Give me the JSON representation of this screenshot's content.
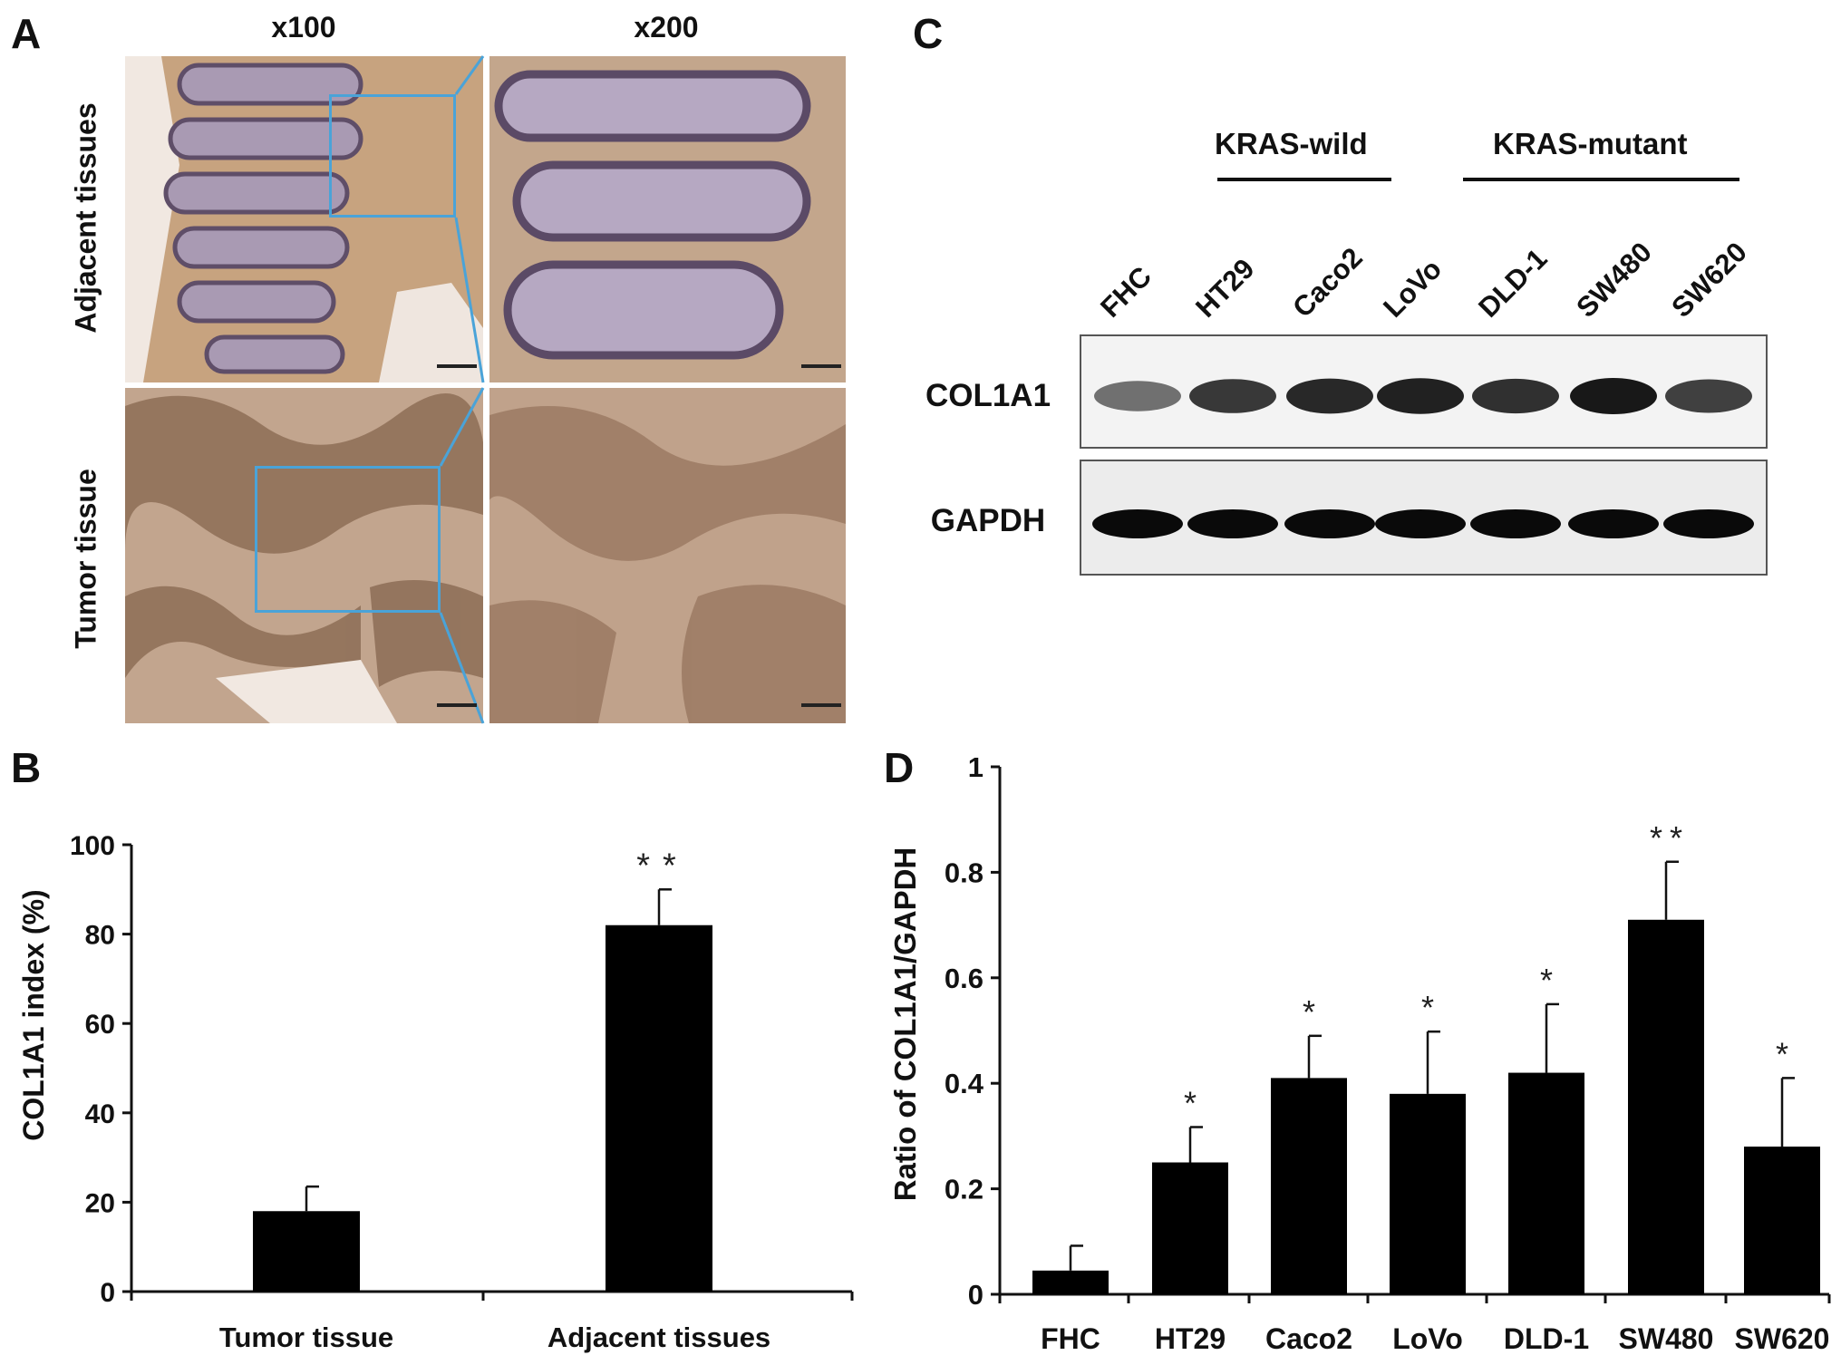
{
  "panels": {
    "a": "A",
    "b": "B",
    "c": "C",
    "d": "D"
  },
  "panel_a": {
    "columns": [
      "x100",
      "x200"
    ],
    "rows": [
      "Adjacent tissues",
      "Tumor tissue"
    ]
  },
  "panel_c": {
    "groups": [
      {
        "label": "KRAS-wild"
      },
      {
        "label": "KRAS-mutant"
      }
    ],
    "lanes": [
      "FHC",
      "HT29",
      "Caco2",
      "LoVo",
      "DLD-1",
      "SW480",
      "SW620"
    ],
    "blots": [
      "COL1A1",
      "GAPDH"
    ]
  },
  "chart_data": [
    {
      "type": "bar",
      "panel": "B",
      "categories": [
        "Tumor tissue",
        "Adjacent tissues"
      ],
      "values": [
        18,
        82
      ],
      "errors": [
        5.5,
        8
      ],
      "significance": [
        "",
        "**"
      ],
      "ylabel": "COL1A1 index (%)",
      "ylim": [
        0,
        100
      ],
      "yticks": [
        0,
        20,
        40,
        60,
        80,
        100
      ]
    },
    {
      "type": "bar",
      "panel": "D",
      "categories": [
        "FHC",
        "HT29",
        "Caco2",
        "LoVo",
        "DLD-1",
        "SW480",
        "SW620"
      ],
      "values": [
        0.045,
        0.25,
        0.41,
        0.38,
        0.42,
        0.71,
        0.28
      ],
      "errors": [
        0.047,
        0.067,
        0.08,
        0.118,
        0.13,
        0.11,
        0.13
      ],
      "significance": [
        "",
        "*",
        "*",
        "*",
        "*",
        "**",
        "*"
      ],
      "ylabel": "Ratio of COL1A1/GAPDH",
      "ylim": [
        0,
        1
      ],
      "yticks": [
        "0",
        "0.2",
        "0.4",
        "0.6",
        "0.8",
        "1"
      ]
    }
  ]
}
